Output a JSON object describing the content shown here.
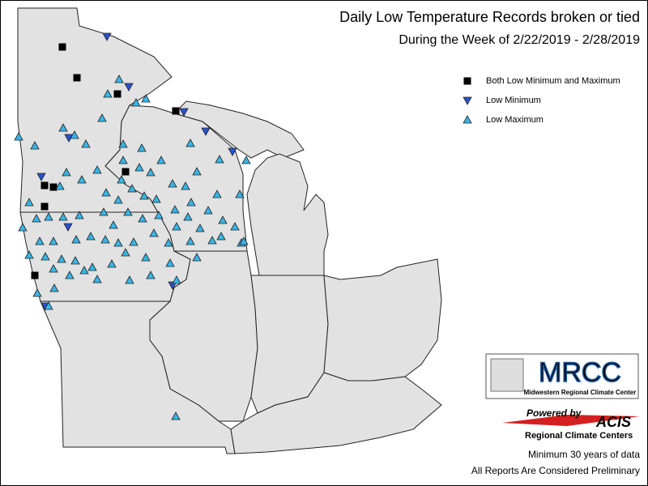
{
  "header": {
    "title": "Daily Low Temperature Records broken or tied",
    "subtitle": "During the Week of 2/22/2019 - 2/28/2019"
  },
  "legend": {
    "items": [
      "Both Low Minimum and Maximum",
      "Low Minimum",
      "Low Maximum"
    ]
  },
  "logos": {
    "mrcc": "MRCC",
    "mrcc_name": "Midwestern Regional Climate Center",
    "powered_by": "Powered by",
    "acis": "ACIS",
    "rcc": "Regional Climate Centers"
  },
  "footer": {
    "notes": [
      "Minimum 30 years of data",
      "All Reports Are Considered Preliminary"
    ]
  }
}
